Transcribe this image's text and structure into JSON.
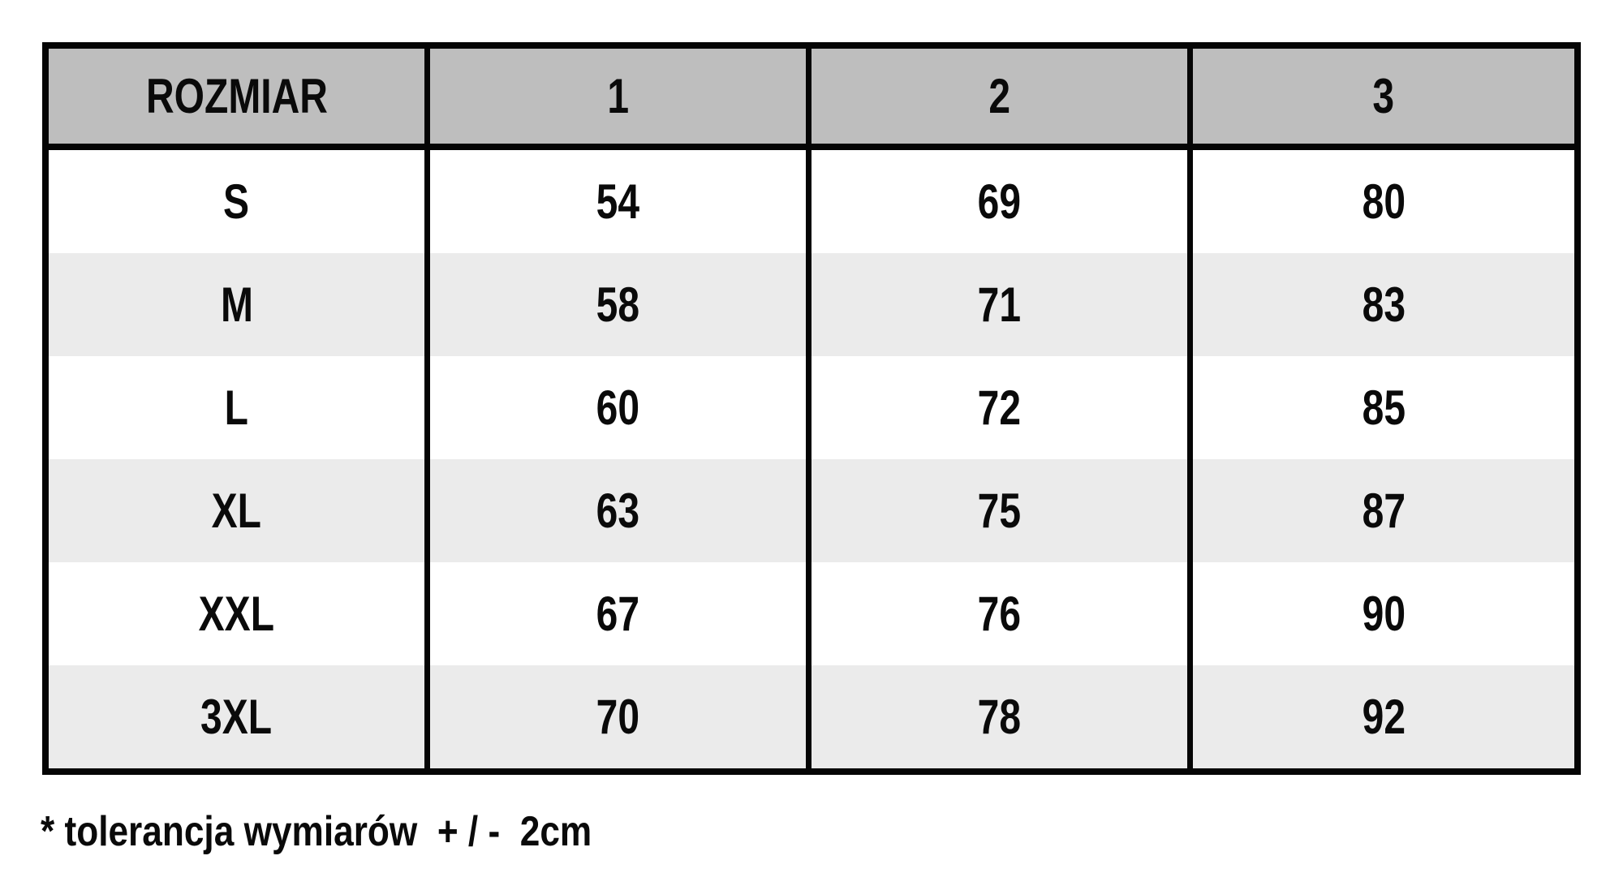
{
  "table": {
    "columns": [
      "ROZMIAR",
      "1",
      "2",
      "3"
    ],
    "rows": [
      {
        "size": "S",
        "values": [
          "54",
          "69",
          "80"
        ]
      },
      {
        "size": "M",
        "values": [
          "58",
          "71",
          "83"
        ]
      },
      {
        "size": "L",
        "values": [
          "60",
          "72",
          "85"
        ]
      },
      {
        "size": "XL",
        "values": [
          "63",
          "75",
          "87"
        ]
      },
      {
        "size": "XXL",
        "values": [
          "67",
          "76",
          "90"
        ]
      },
      {
        "size": "3XL",
        "values": [
          "70",
          "78",
          "92"
        ]
      }
    ]
  },
  "footnote": "* tolerancja wymiarów  + / -  2cm",
  "colors": {
    "header_bg": "#bebebe",
    "row_alt_bg": "#ebebeb",
    "border": "#050505",
    "text": "#0a0a0a",
    "background": "#ffffff"
  },
  "chart_data": {
    "type": "table",
    "title": "",
    "columns": [
      "ROZMIAR",
      "1",
      "2",
      "3"
    ],
    "rows": [
      [
        "S",
        54,
        69,
        80
      ],
      [
        "M",
        58,
        71,
        83
      ],
      [
        "L",
        60,
        72,
        85
      ],
      [
        "XL",
        63,
        75,
        87
      ],
      [
        "XXL",
        67,
        76,
        90
      ],
      [
        "3XL",
        70,
        78,
        92
      ]
    ],
    "footnote": "* tolerancja wymiarów + / - 2cm",
    "layout_hints": {
      "header_background": "#bebebe",
      "zebra_stripe_background": "#ebebeb",
      "grid": "thick black outer border, thick vertical dividers, single thick line under header, no horizontal lines between body rows"
    }
  }
}
